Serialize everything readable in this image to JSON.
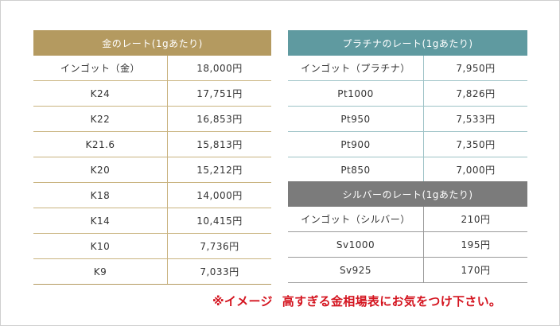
{
  "gold": {
    "title": "金のレート(1gあたり)",
    "rows": [
      {
        "name": "インゴット（金）",
        "price": "18,000円"
      },
      {
        "name": "K24",
        "price": "17,751円"
      },
      {
        "name": "K22",
        "price": "16,853円"
      },
      {
        "name": "K21.6",
        "price": "15,813円"
      },
      {
        "name": "K20",
        "price": "15,212円"
      },
      {
        "name": "K18",
        "price": "14,000円"
      },
      {
        "name": "K14",
        "price": "10,415円"
      },
      {
        "name": "K10",
        "price": "7,736円"
      },
      {
        "name": "K9",
        "price": "7,033円"
      }
    ]
  },
  "platinum": {
    "title": "プラチナのレート(1gあたり)",
    "rows": [
      {
        "name": "インゴット（プラチナ）",
        "price": "7,950円"
      },
      {
        "name": "Pt1000",
        "price": "7,826円"
      },
      {
        "name": "Pt950",
        "price": "7,533円"
      },
      {
        "name": "Pt900",
        "price": "7,350円"
      },
      {
        "name": "Pt850",
        "price": "7,000円"
      }
    ]
  },
  "silver": {
    "title": "シルバーのレート(1gあたり)",
    "rows": [
      {
        "name": "インゴット（シルバー）",
        "price": "210円"
      },
      {
        "name": "Sv1000",
        "price": "195円"
      },
      {
        "name": "Sv925",
        "price": "170円"
      }
    ]
  },
  "note": {
    "prefix": "※イメージ",
    "text": "高すぎる金相場表にお気をつけ下さい。"
  },
  "colors": {
    "gold_header": "#b49a60",
    "platinum_header": "#5f9aa0",
    "silver_header": "#7b7b7b",
    "note": "#d4141f"
  }
}
